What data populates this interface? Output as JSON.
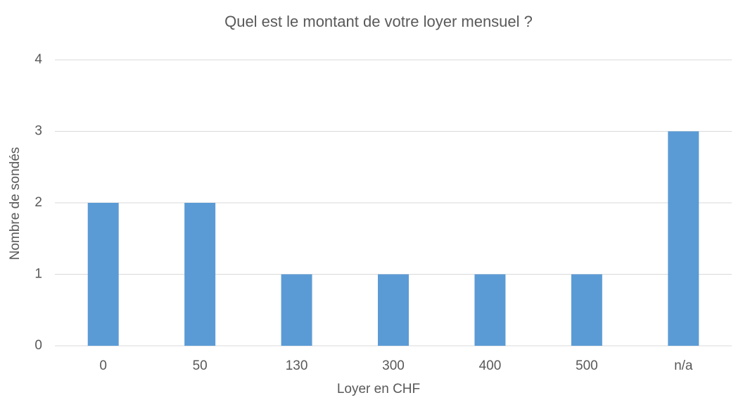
{
  "chart_data": {
    "type": "bar",
    "title": "Quel est le montant de votre loyer mensuel ?",
    "x_label": "Loyer en CHF",
    "y_label": "Nombre de sondés",
    "categories": [
      "0",
      "50",
      "130",
      "300",
      "400",
      "500",
      "n/a"
    ],
    "values": [
      2,
      2,
      1,
      1,
      1,
      1,
      3
    ],
    "color": "#5b9bd5",
    "ylim": [
      0,
      4
    ],
    "yticks": [
      0,
      1,
      2,
      3,
      4
    ],
    "grid": true
  }
}
